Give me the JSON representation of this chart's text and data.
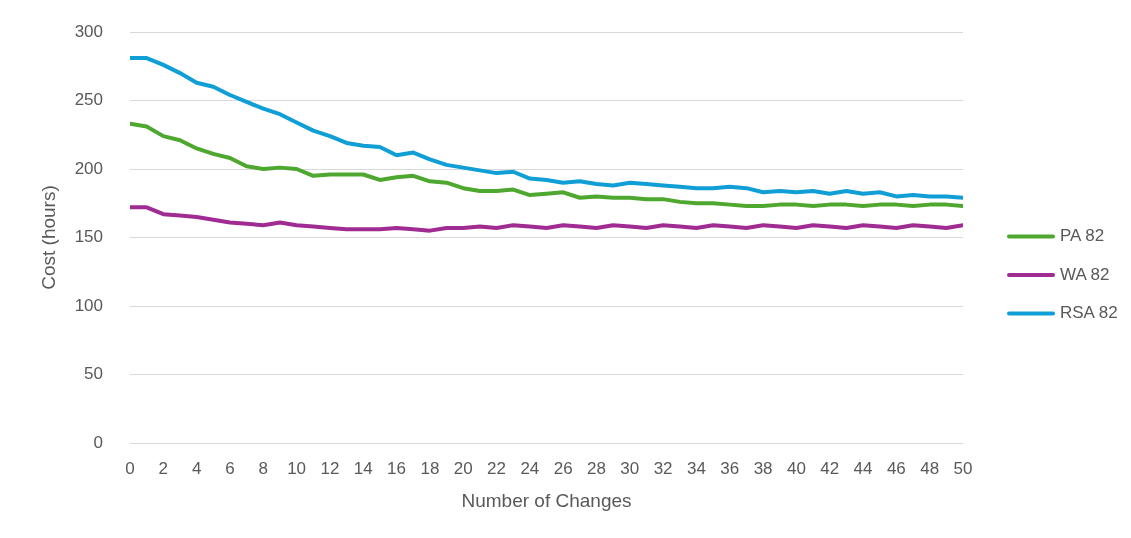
{
  "chart_data": {
    "type": "line",
    "xlabel": "Number of Changes",
    "ylabel": "Cost (hours)",
    "x": [
      0,
      1,
      2,
      3,
      4,
      5,
      6,
      7,
      8,
      9,
      10,
      11,
      12,
      13,
      14,
      15,
      16,
      17,
      18,
      19,
      20,
      21,
      22,
      23,
      24,
      25,
      26,
      27,
      28,
      29,
      30,
      31,
      32,
      33,
      34,
      35,
      36,
      37,
      38,
      39,
      40,
      41,
      42,
      43,
      44,
      45,
      46,
      47,
      48,
      49,
      50
    ],
    "xlim": [
      0,
      50
    ],
    "xticks": [
      0,
      2,
      4,
      6,
      8,
      10,
      12,
      14,
      16,
      18,
      20,
      22,
      24,
      26,
      28,
      30,
      32,
      34,
      36,
      38,
      40,
      42,
      44,
      46,
      48,
      50
    ],
    "ylim": [
      0,
      300
    ],
    "yticks": [
      0,
      50,
      100,
      150,
      200,
      250,
      300
    ],
    "grid": "y",
    "legend": "right",
    "marker": "none",
    "line_style": "solid",
    "series": [
      {
        "name": "PA 82",
        "color": "#4ea72e",
        "values": [
          233,
          231,
          224,
          221,
          215,
          211,
          208,
          202,
          200,
          201,
          200,
          195,
          196,
          196,
          196,
          192,
          194,
          195,
          191,
          190,
          186,
          184,
          184,
          185,
          181,
          182,
          183,
          179,
          180,
          179,
          179,
          178,
          178,
          176,
          175,
          175,
          174,
          173,
          173,
          174,
          174,
          173,
          174,
          174,
          173,
          174,
          174,
          173,
          174,
          174,
          173
        ]
      },
      {
        "name": "WA 82",
        "color": "#a02b93",
        "values": [
          172,
          172,
          167,
          166,
          165,
          163,
          161,
          160,
          159,
          161,
          159,
          158,
          157,
          156,
          156,
          156,
          157,
          156,
          155,
          157,
          157,
          158,
          157,
          159,
          158,
          157,
          159,
          158,
          157,
          159,
          158,
          157,
          159,
          158,
          157,
          159,
          158,
          157,
          159,
          158,
          157,
          159,
          158,
          157,
          159,
          158,
          157,
          159,
          158,
          157,
          159
        ]
      },
      {
        "name": "RSA 82",
        "color": "#0f9ed5",
        "values": [
          281,
          281,
          276,
          270,
          263,
          260,
          254,
          249,
          244,
          240,
          234,
          228,
          224,
          219,
          217,
          216,
          210,
          212,
          207,
          203,
          201,
          199,
          197,
          198,
          193,
          192,
          190,
          191,
          189,
          188,
          190,
          189,
          188,
          187,
          186,
          186,
          187,
          186,
          183,
          184,
          183,
          184,
          182,
          184,
          182,
          183,
          180,
          181,
          180,
          180,
          179
        ]
      }
    ]
  }
}
